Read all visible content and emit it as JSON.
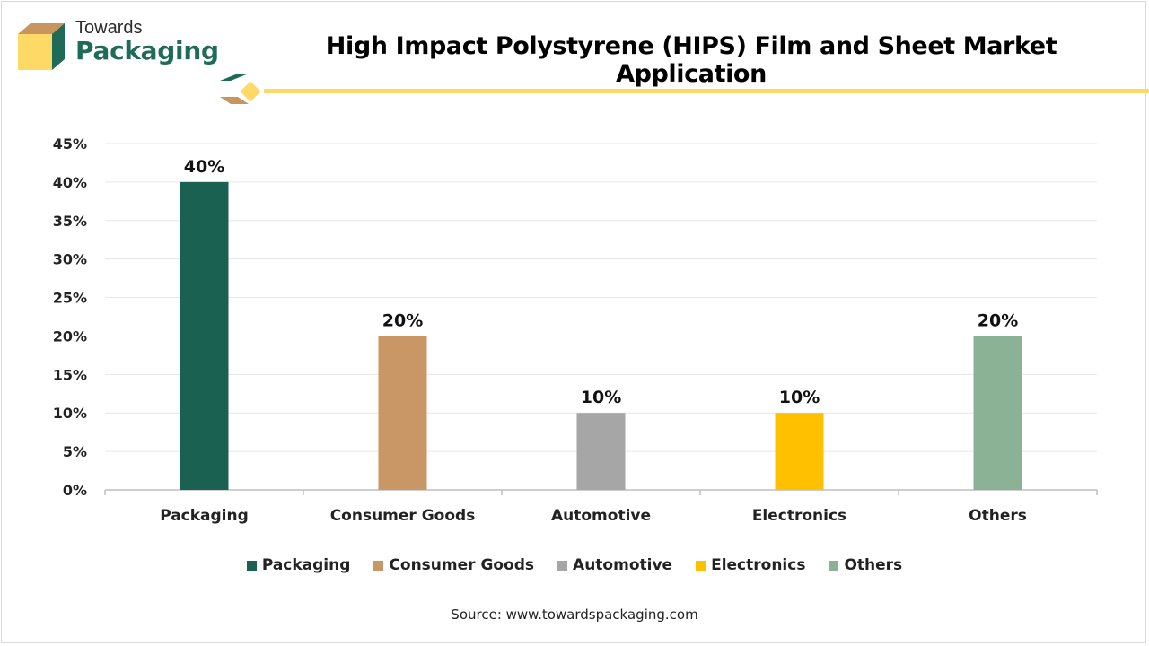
{
  "brand": {
    "top_text": "Towards",
    "bottom_text": "Packaging",
    "colors": {
      "green": "#1f6b57",
      "tan": "#c9955f",
      "yellow": "#ffd966"
    }
  },
  "source_text": "Source: www.towardspackaging.com",
  "chart_data": {
    "type": "bar",
    "title": "High Impact Polystyrene (HIPS) Film and Sheet Market Application",
    "categories": [
      "Packaging",
      "Consumer Goods",
      "Automotive",
      "Electronics",
      "Others"
    ],
    "values": [
      40,
      20,
      10,
      10,
      20
    ],
    "data_labels": [
      "40%",
      "20%",
      "10%",
      "10%",
      "20%"
    ],
    "colors": [
      "#1b6151",
      "#c99766",
      "#a6a6a6",
      "#ffc000",
      "#8cb295"
    ],
    "ylim": [
      0,
      45
    ],
    "yticks": [
      "0%",
      "5%",
      "10%",
      "15%",
      "20%",
      "25%",
      "30%",
      "35%",
      "40%",
      "45%"
    ],
    "xlabel": "",
    "ylabel": "",
    "grid": true,
    "legend_position": "bottom"
  }
}
